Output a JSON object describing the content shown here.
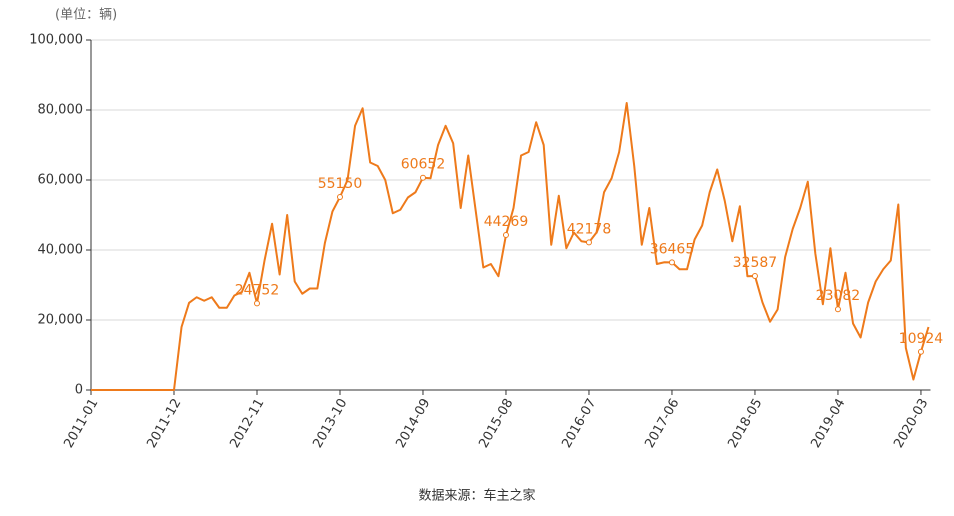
{
  "chart_data": {
    "type": "line",
    "unit_label": "(单位：辆)",
    "source": "数据来源：车主之家",
    "categories": [
      "2011-01",
      null,
      null,
      null,
      null,
      null,
      null,
      null,
      null,
      null,
      null,
      "2011-12",
      null,
      null,
      null,
      null,
      null,
      null,
      null,
      null,
      null,
      null,
      "2012-11",
      null,
      null,
      null,
      null,
      null,
      null,
      null,
      null,
      null,
      null,
      "2013-10",
      null,
      null,
      null,
      null,
      null,
      null,
      null,
      null,
      null,
      null,
      "2014-09",
      null,
      null,
      null,
      null,
      null,
      null,
      null,
      null,
      null,
      null,
      "2015-08",
      null,
      null,
      null,
      null,
      null,
      null,
      null,
      null,
      null,
      null,
      "2016-07",
      null,
      null,
      null,
      null,
      null,
      null,
      null,
      null,
      null,
      null,
      "2017-06",
      null,
      null,
      null,
      null,
      null,
      null,
      null,
      null,
      null,
      null,
      "2018-05",
      null,
      null,
      null,
      null,
      null,
      null,
      null,
      null,
      null,
      null,
      "2019-04",
      null,
      null,
      null,
      null,
      null,
      null,
      null,
      null,
      null,
      null,
      "2020-03",
      null
    ],
    "series": [
      {
        "color": "#ee7a1b",
        "values": [
          0,
          0,
          0,
          0,
          0,
          0,
          0,
          0,
          0,
          0,
          0,
          0,
          18000,
          24900,
          26500,
          25500,
          26500,
          23500,
          23500,
          27000,
          28000,
          33500,
          24752,
          37000,
          47500,
          33000,
          50000,
          31000,
          27500,
          29000,
          29000,
          42000,
          51000,
          55150,
          60000,
          75500,
          80500,
          65000,
          64000,
          60000,
          50500,
          51500,
          55000,
          56500,
          60652,
          60500,
          70000,
          75500,
          70500,
          52000,
          67000,
          51000,
          35000,
          36000,
          32500,
          44269,
          52000,
          67000,
          68000,
          76500,
          70000,
          41500,
          55500,
          40500,
          45000,
          42500,
          42178,
          45000,
          56500,
          60500,
          68000,
          82000,
          64000,
          41500,
          52000,
          36000,
          36500,
          36465,
          34500,
          34500,
          43000,
          47000,
          56500,
          63000,
          54000,
          42500,
          52500,
          32500,
          32587,
          25000,
          19500,
          23000,
          38000,
          46000,
          52000,
          59500,
          39000,
          24500,
          40500,
          23082,
          33500,
          19000,
          15000,
          25000,
          31000,
          34500,
          37000,
          53000,
          12000,
          3000,
          10924,
          18000
        ]
      }
    ],
    "ylim": [
      0,
      100000
    ],
    "yticks": [
      0,
      {
        "value": 20000,
        "label": "20,000"
      },
      {
        "value": 40000,
        "label": "40,000"
      },
      {
        "value": 60000,
        "label": "60,000"
      },
      {
        "value": 80000,
        "label": "80,000"
      },
      {
        "value": 100000,
        "label": "100,000"
      }
    ],
    "grid": true
  }
}
